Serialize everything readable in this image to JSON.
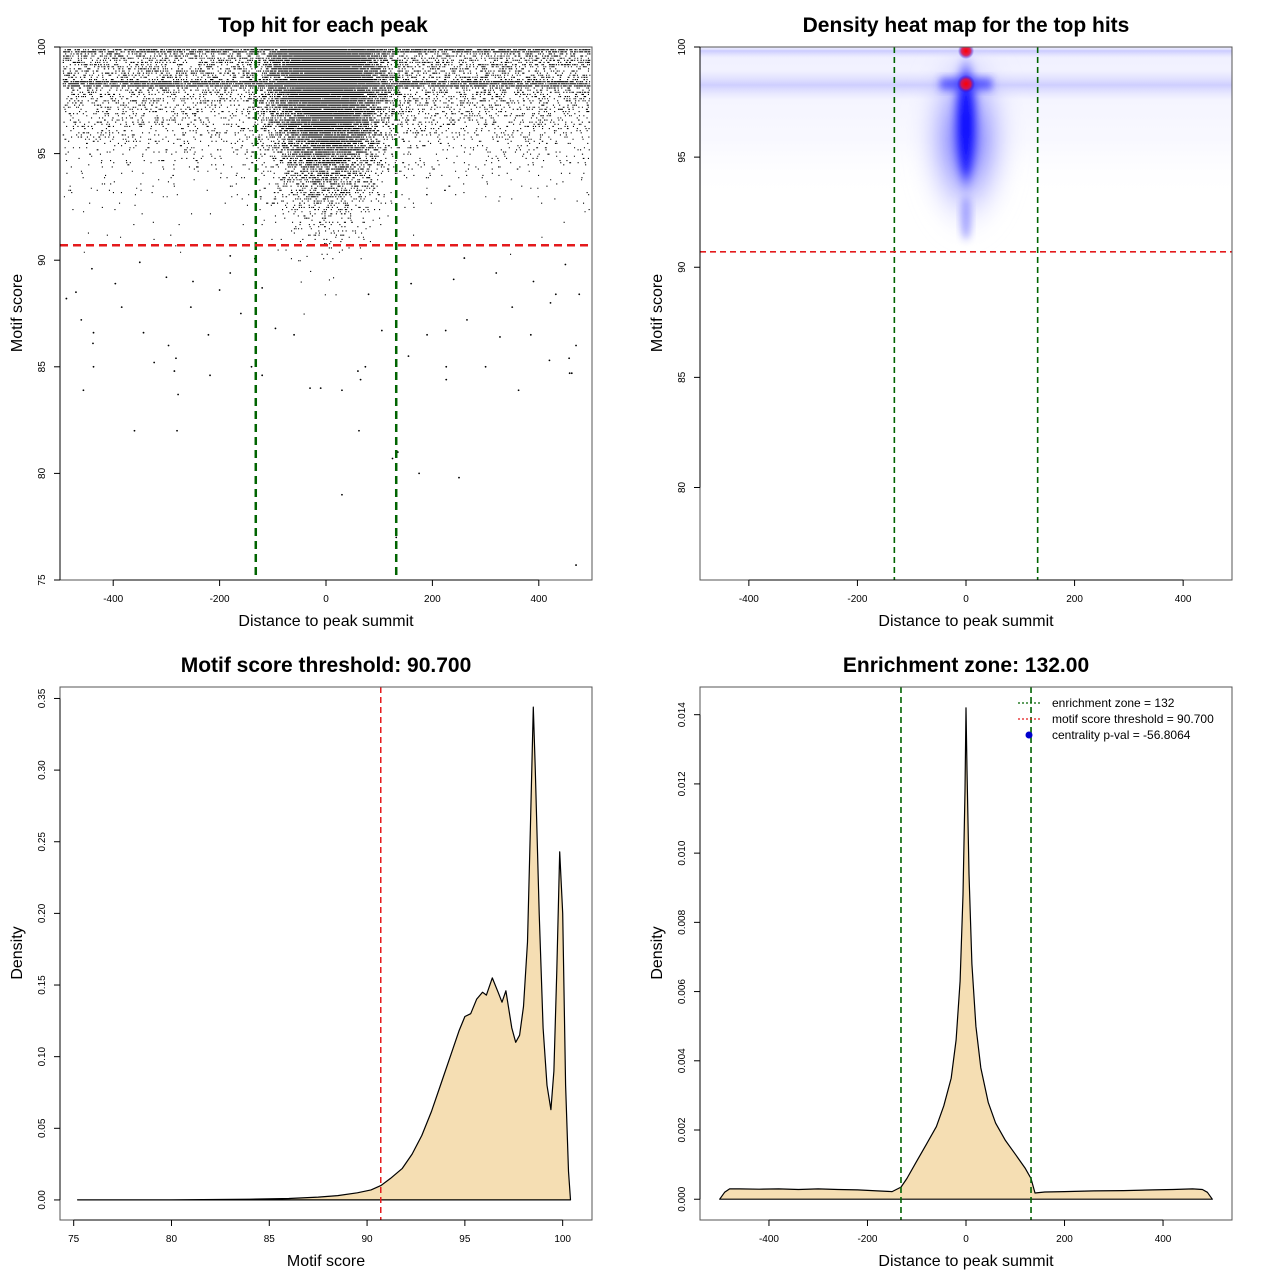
{
  "colors": {
    "threshold_line": "#e41a1c",
    "zone_line": "#006400",
    "density_fill": "#f5deb3",
    "heat_low": "#ffffff",
    "heat_mid": "#0000ff",
    "heat_high": "#ff0000",
    "legend_point": "#0000cd"
  },
  "chart_data": [
    {
      "id": "scatter",
      "type": "scatter",
      "title": "Top hit for each peak",
      "xlabel": "Distance to peak summit",
      "ylabel": "Motif score",
      "xlim": [
        -500,
        500
      ],
      "ylim": [
        75,
        100
      ],
      "xticks": [
        -400,
        -200,
        0,
        200,
        400
      ],
      "yticks": [
        75,
        80,
        85,
        90,
        95,
        100
      ],
      "threshold": 90.7,
      "enrichment_zone": 132,
      "outlier_points": [
        [
          -360,
          82.0
        ],
        [
          -280,
          82.0
        ],
        [
          -278,
          83.7
        ],
        [
          -456,
          83.9
        ],
        [
          -323,
          85.2
        ],
        [
          -285,
          84.8
        ],
        [
          -282,
          85.4
        ],
        [
          -218,
          84.6
        ],
        [
          -437,
          85.0
        ],
        [
          -437,
          86.6
        ],
        [
          -438,
          86.1
        ],
        [
          -343,
          86.6
        ],
        [
          -296,
          86.0
        ],
        [
          -221,
          86.5
        ],
        [
          -460,
          87.2
        ],
        [
          -384,
          87.8
        ],
        [
          -254,
          87.8
        ],
        [
          -140,
          85.0
        ],
        [
          -120,
          84.6
        ],
        [
          -30,
          84.0
        ],
        [
          -10,
          84.0
        ],
        [
          30,
          83.9
        ],
        [
          60,
          84.8
        ],
        [
          74,
          85.0
        ],
        [
          65,
          84.4
        ],
        [
          30,
          79.0
        ],
        [
          62,
          82.0
        ],
        [
          125,
          80.7
        ],
        [
          135,
          81.0
        ],
        [
          132,
          77.0
        ],
        [
          175,
          80.0
        ],
        [
          250,
          79.8
        ],
        [
          155,
          85.5
        ],
        [
          226,
          84.4
        ],
        [
          226,
          85.0
        ],
        [
          300,
          85.0
        ],
        [
          362,
          83.9
        ],
        [
          420,
          85.3
        ],
        [
          458,
          84.7
        ],
        [
          462,
          84.7
        ],
        [
          470,
          86.0
        ],
        [
          470,
          75.7
        ],
        [
          457,
          85.4
        ],
        [
          327,
          86.4
        ],
        [
          385,
          86.5
        ],
        [
          476,
          88.4
        ],
        [
          432,
          88.4
        ],
        [
          422,
          88.0
        ],
        [
          350,
          87.8
        ],
        [
          265,
          87.2
        ],
        [
          225,
          86.7
        ],
        [
          190,
          86.5
        ],
        [
          105,
          86.7
        ],
        [
          -95,
          86.8
        ],
        [
          -60,
          86.5
        ],
        [
          -160,
          87.5
        ],
        [
          -200,
          88.6
        ],
        [
          -470,
          88.5
        ],
        [
          -488,
          88.2
        ],
        [
          -396,
          88.9
        ],
        [
          -300,
          89.2
        ],
        [
          -250,
          89.0
        ],
        [
          -180,
          89.4
        ],
        [
          -120,
          88.7
        ],
        [
          80,
          88.4
        ],
        [
          160,
          88.9
        ],
        [
          240,
          89.1
        ],
        [
          320,
          89.4
        ],
        [
          390,
          89.0
        ],
        [
          -440,
          89.6
        ],
        [
          -350,
          89.9
        ],
        [
          -180,
          90.2
        ],
        [
          260,
          90.1
        ],
        [
          450,
          89.8
        ]
      ]
    },
    {
      "id": "heatmap",
      "type": "heatmap",
      "title": "Density heat map for the top hits",
      "xlabel": "Distance to peak summit",
      "ylabel": "Motif score",
      "xlim": [
        -490,
        490
      ],
      "ylim": [
        75.8,
        100
      ],
      "xticks": [
        -400,
        -200,
        0,
        200,
        400
      ],
      "yticks": [
        80,
        85,
        90,
        95,
        100
      ],
      "threshold": 90.7,
      "enrichment_zone": 132
    },
    {
      "id": "score_density",
      "type": "area",
      "title": "Motif score threshold: 90.700",
      "xlabel": "Motif score",
      "ylabel": "Density",
      "xlim": [
        74.3,
        101.5
      ],
      "ylim": [
        -0.014,
        0.358
      ],
      "xticks": [
        75,
        80,
        85,
        90,
        95,
        100
      ],
      "yticks": [
        0.0,
        0.05,
        0.1,
        0.15,
        0.2,
        0.25,
        0.3,
        0.35
      ],
      "ytick_labels": [
        "0.00",
        "0.05",
        "0.10",
        "0.15",
        "0.20",
        "0.25",
        "0.30",
        "0.35"
      ],
      "threshold": 90.7,
      "x": [
        75.2,
        80,
        84,
        86,
        87.5,
        88.5,
        89.5,
        90.2,
        90.7,
        91.2,
        91.8,
        92.3,
        92.8,
        93.3,
        93.8,
        94.3,
        94.7,
        95.0,
        95.3,
        95.6,
        95.9,
        96.1,
        96.4,
        96.7,
        96.9,
        97.1,
        97.4,
        97.6,
        97.8,
        98.0,
        98.2,
        98.35,
        98.5,
        98.6,
        98.8,
        99.0,
        99.2,
        99.4,
        99.55,
        99.7,
        99.85,
        100.0,
        100.15,
        100.3,
        100.4
      ],
      "y": [
        0.0,
        0.0,
        0.0005,
        0.001,
        0.002,
        0.003,
        0.005,
        0.007,
        0.01,
        0.015,
        0.022,
        0.032,
        0.045,
        0.062,
        0.082,
        0.102,
        0.118,
        0.128,
        0.13,
        0.14,
        0.145,
        0.143,
        0.155,
        0.145,
        0.138,
        0.146,
        0.12,
        0.11,
        0.115,
        0.135,
        0.18,
        0.26,
        0.344,
        0.3,
        0.2,
        0.12,
        0.08,
        0.063,
        0.09,
        0.16,
        0.243,
        0.2,
        0.08,
        0.02,
        0.0
      ]
    },
    {
      "id": "distance_density",
      "type": "area",
      "title": "Enrichment zone: 132.00",
      "xlabel": "Distance to peak summit",
      "ylabel": "Density",
      "xlim": [
        -540,
        540
      ],
      "ylim": [
        -0.0006,
        0.0148
      ],
      "xticks": [
        -400,
        -200,
        0,
        200,
        400
      ],
      "yticks": [
        0.0,
        0.002,
        0.004,
        0.006,
        0.008,
        0.01,
        0.012,
        0.014
      ],
      "ytick_labels": [
        "0.000",
        "0.002",
        "0.004",
        "0.006",
        "0.008",
        "0.010",
        "0.012",
        "0.014"
      ],
      "enrichment_zone": 132,
      "x": [
        -500,
        -490,
        -480,
        -460,
        -420,
        -380,
        -340,
        -300,
        -260,
        -220,
        -180,
        -150,
        -132,
        -120,
        -100,
        -80,
        -60,
        -45,
        -30,
        -20,
        -12,
        -6,
        -2,
        0,
        2,
        6,
        12,
        20,
        30,
        45,
        60,
        80,
        100,
        120,
        132,
        140,
        160,
        200,
        260,
        320,
        380,
        420,
        460,
        480,
        490,
        500
      ],
      "y": [
        0.0,
        0.0002,
        0.0003,
        0.0003,
        0.00029,
        0.0003,
        0.00028,
        0.0003,
        0.00028,
        0.00027,
        0.00024,
        0.00022,
        0.00035,
        0.0006,
        0.0011,
        0.0016,
        0.0021,
        0.0027,
        0.0035,
        0.0046,
        0.0063,
        0.0088,
        0.0118,
        0.0142,
        0.0124,
        0.0094,
        0.0068,
        0.005,
        0.0038,
        0.0028,
        0.0022,
        0.0017,
        0.0013,
        0.0009,
        0.0006,
        0.00018,
        0.00021,
        0.00022,
        0.00024,
        0.00025,
        0.00027,
        0.00028,
        0.0003,
        0.00028,
        0.0002,
        0.0
      ],
      "legend": [
        {
          "label": "enrichment zone = 132",
          "kind": "zone-line"
        },
        {
          "label": "motif score threshold = 90.700",
          "kind": "threshold-line"
        },
        {
          "label": "centrality p-val = -56.8064",
          "kind": "point"
        }
      ]
    }
  ]
}
